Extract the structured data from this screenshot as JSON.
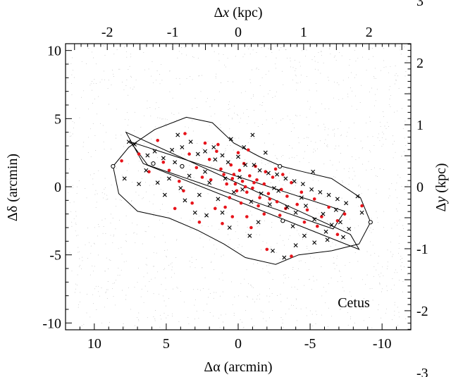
{
  "chart_data": {
    "type": "scatter",
    "bottom_axis": {
      "label_prefix": "Δα",
      "label_suffix": " (arcmin)",
      "range": [
        12,
        -12
      ],
      "ticks": [
        10,
        5,
        0,
        -5,
        -10
      ],
      "tick_labels": [
        "10",
        "5",
        "0",
        "-5",
        "-10"
      ]
    },
    "left_axis": {
      "label_prefix": "Δδ",
      "label_suffix": " (arcmin)",
      "range": [
        -10.5,
        10.5
      ],
      "ticks": [
        10,
        5,
        0,
        -5,
        -10
      ],
      "tick_labels": [
        "10",
        "5",
        "0",
        "-5",
        "-10"
      ]
    },
    "top_axis": {
      "label_prefix": "Δ",
      "label_var": "x",
      "label_suffix": " (kpc)",
      "ticks_arcmin": [
        9.1,
        4.55,
        0,
        -4.55,
        -9.1
      ],
      "tick_labels": [
        "-2",
        "-1",
        "0",
        "1",
        "2"
      ]
    },
    "right_axis": {
      "label_prefix": "Δ",
      "label_var": "y",
      "label_suffix": " (kpc)",
      "ticks_arcmin": [
        13.65,
        9.1,
        4.55,
        0,
        -4.55,
        -9.1,
        -13.65
      ],
      "tick_labels": [
        "3",
        "2",
        "1",
        "0",
        "-1",
        "-2",
        "-3"
      ]
    },
    "annotation": "Cetus",
    "colors": {
      "red": "#e8141b",
      "black": "#000000",
      "background_dots": "#bbbbbb"
    },
    "peanut_outline": [
      [
        8.7,
        1.5
      ],
      [
        7.6,
        2.9
      ],
      [
        5.8,
        4.2
      ],
      [
        3.6,
        5.1
      ],
      [
        1.8,
        4.7
      ],
      [
        0.3,
        3.2
      ],
      [
        -1.5,
        2.2
      ],
      [
        -3.0,
        1.5
      ],
      [
        -4.5,
        1.1
      ],
      [
        -6.5,
        0.6
      ],
      [
        -8.5,
        -0.8
      ],
      [
        -9.2,
        -2.6
      ],
      [
        -8.4,
        -4.2
      ],
      [
        -6.5,
        -4.7
      ],
      [
        -4.2,
        -5.0
      ],
      [
        -2.6,
        -5.7
      ],
      [
        -0.5,
        -5.2
      ],
      [
        1.0,
        -4.2
      ],
      [
        2.8,
        -3.2
      ],
      [
        4.8,
        -2.3
      ],
      [
        7.0,
        -1.8
      ],
      [
        8.3,
        -0.5
      ],
      [
        8.7,
        1.5
      ]
    ],
    "slit_outer": [
      [
        7.8,
        4.0
      ],
      [
        -7.8,
        -3.5
      ],
      [
        -8.4,
        -4.6
      ],
      [
        6.6,
        1.7
      ]
    ],
    "slit_inner": [
      [
        6.3,
        1.6
      ],
      [
        7.5,
        3.3
      ],
      [
        -7.4,
        -1.8
      ],
      [
        -6.6,
        -3.1
      ]
    ],
    "open_circles": [
      [
        8.7,
        1.5
      ],
      [
        -2.9,
        1.5
      ],
      [
        -3.1,
        -2.5
      ],
      [
        -9.2,
        -2.6
      ],
      [
        5.9,
        1.7
      ],
      [
        3.9,
        1.5
      ]
    ],
    "black_points": [
      [
        7.6,
        3.3
      ],
      [
        7.2,
        3.1
      ],
      [
        6.3,
        2.3
      ],
      [
        5.8,
        2.6
      ],
      [
        5.2,
        2.1
      ],
      [
        4.6,
        2.7
      ],
      [
        3.9,
        2.9
      ],
      [
        3.3,
        3.3
      ],
      [
        2.8,
        2.4
      ],
      [
        2.3,
        2.6
      ],
      [
        1.6,
        2.0
      ],
      [
        1.1,
        2.3
      ],
      [
        0.7,
        1.8
      ],
      [
        0.0,
        2.2
      ],
      [
        -0.5,
        1.6
      ],
      [
        -1.1,
        1.6
      ],
      [
        -1.5,
        1.2
      ],
      [
        -2.1,
        1.0
      ],
      [
        -2.7,
        0.9
      ],
      [
        -3.3,
        0.6
      ],
      [
        -3.9,
        0.4
      ],
      [
        -4.5,
        0.2
      ],
      [
        -5.1,
        -0.2
      ],
      [
        -5.7,
        -0.4
      ],
      [
        -6.3,
        -0.6
      ],
      [
        -6.9,
        -0.9
      ],
      [
        -7.5,
        -1.2
      ],
      [
        5.6,
        0.3
      ],
      [
        4.8,
        0.6
      ],
      [
        4.0,
        -0.1
      ],
      [
        3.4,
        0.8
      ],
      [
        2.7,
        -0.6
      ],
      [
        2.0,
        0.3
      ],
      [
        1.4,
        -0.9
      ],
      [
        0.9,
        0.6
      ],
      [
        0.3,
        -0.4
      ],
      [
        -0.3,
        -0.2
      ],
      [
        -0.9,
        -1.1
      ],
      [
        -1.6,
        -0.5
      ],
      [
        -2.2,
        -1.3
      ],
      [
        -2.8,
        -0.3
      ],
      [
        -3.4,
        -1.5
      ],
      [
        -4.0,
        -1.9
      ],
      [
        -4.7,
        -1.4
      ],
      [
        -5.3,
        -2.4
      ],
      [
        -5.9,
        -2.0
      ],
      [
        -6.5,
        -2.8
      ],
      [
        -7.1,
        -2.6
      ],
      [
        -7.7,
        -3.1
      ],
      [
        -4.6,
        -3.6
      ],
      [
        -5.3,
        -4.1
      ],
      [
        -6.2,
        -3.9
      ],
      [
        -4.0,
        -4.3
      ],
      [
        -3.2,
        -5.2
      ],
      [
        -2.4,
        -4.7
      ],
      [
        -0.8,
        -3.6
      ],
      [
        0.6,
        -3.0
      ],
      [
        2.2,
        -2.1
      ],
      [
        3.7,
        -1.0
      ],
      [
        6.9,
        0.2
      ],
      [
        7.9,
        0.6
      ],
      [
        -8.6,
        -1.9
      ],
      [
        -8.3,
        -0.7
      ],
      [
        -5.2,
        1.1
      ],
      [
        -1.9,
        2.5
      ],
      [
        4.2,
        3.8
      ],
      [
        2.3,
        1.1
      ],
      [
        -0.1,
        0.7
      ],
      [
        -2.5,
        -0.1
      ],
      [
        -4.4,
        -0.8
      ],
      [
        1.1,
        -1.9
      ],
      [
        -1.4,
        -2.6
      ],
      [
        -3.8,
        -2.9
      ],
      [
        6.4,
        1.2
      ],
      [
        5.1,
        -0.6
      ],
      [
        -6.8,
        -1.7
      ],
      [
        0.5,
        3.5
      ],
      [
        -1.0,
        3.8
      ],
      [
        3.0,
        -1.9
      ],
      [
        -6.1,
        -3.3
      ],
      [
        -7.3,
        -3.7
      ],
      [
        4.4,
        1.8
      ],
      [
        1.7,
        2.9
      ],
      [
        -0.4,
        2.9
      ]
    ],
    "red_points": [
      [
        8.1,
        1.9
      ],
      [
        6.9,
        2.4
      ],
      [
        5.6,
        3.4
      ],
      [
        4.8,
        1.2
      ],
      [
        3.7,
        3.9
      ],
      [
        2.9,
        1.4
      ],
      [
        2.3,
        3.2
      ],
      [
        1.9,
        0.5
      ],
      [
        1.5,
        2.6
      ],
      [
        1.2,
        1.3
      ],
      [
        0.8,
        0.2
      ],
      [
        0.5,
        1.6
      ],
      [
        0.3,
        0.9
      ],
      [
        0.1,
        -0.3
      ],
      [
        -0.1,
        1.2
      ],
      [
        -0.3,
        0.4
      ],
      [
        -0.6,
        -0.4
      ],
      [
        -0.8,
        0.8
      ],
      [
        -1.0,
        -0.1
      ],
      [
        -1.3,
        0.5
      ],
      [
        -1.5,
        -0.8
      ],
      [
        -1.8,
        0.2
      ],
      [
        -2.1,
        -0.5
      ],
      [
        -2.4,
        0.7
      ],
      [
        -2.7,
        -1.1
      ],
      [
        -3.0,
        -0.2
      ],
      [
        -3.4,
        -0.7
      ],
      [
        -3.7,
        0.3
      ],
      [
        -4.1,
        -1.3
      ],
      [
        -4.4,
        -0.4
      ],
      [
        -4.8,
        -1.7
      ],
      [
        -5.3,
        -0.9
      ],
      [
        -5.8,
        -2.2
      ],
      [
        -6.3,
        -1.5
      ],
      [
        -6.9,
        -2.5
      ],
      [
        -7.4,
        -2.0
      ],
      [
        -8.6,
        -1.4
      ],
      [
        -6.9,
        -3.5
      ],
      [
        -2.0,
        -4.6
      ],
      [
        -3.7,
        -5.1
      ],
      [
        1.6,
        -1.6
      ],
      [
        3.2,
        -1.2
      ],
      [
        4.4,
        -1.6
      ],
      [
        2.7,
        -2.6
      ],
      [
        1.1,
        -2.7
      ],
      [
        0.4,
        -2.2
      ],
      [
        -0.6,
        -2.2
      ],
      [
        -0.9,
        -3.0
      ],
      [
        -1.8,
        -2.0
      ],
      [
        -2.9,
        -2.1
      ],
      [
        0.2,
        0.2
      ],
      [
        0.6,
        -0.8
      ],
      [
        1.0,
        0.9
      ],
      [
        -0.4,
        1.7
      ],
      [
        -1.2,
        1.5
      ],
      [
        -1.9,
        1.1
      ],
      [
        -2.6,
        1.3
      ],
      [
        -3.1,
        0.9
      ],
      [
        2.0,
        2.0
      ],
      [
        3.4,
        2.4
      ],
      [
        4.1,
        0.4
      ],
      [
        5.2,
        1.8
      ],
      [
        6.2,
        1.1
      ],
      [
        2.5,
        0.7
      ],
      [
        3.8,
        -0.3
      ],
      [
        -0.2,
        -1.2
      ],
      [
        -1.4,
        -1.4
      ],
      [
        -2.2,
        -0.9
      ],
      [
        -3.3,
        -1.6
      ],
      [
        -4.6,
        -2.6
      ],
      [
        -5.5,
        -2.9
      ],
      [
        0.0,
        2.5
      ],
      [
        -0.7,
        2.7
      ],
      [
        1.4,
        3.1
      ],
      [
        0.9,
        -1.5
      ],
      [
        -0.5,
        0.0
      ],
      [
        0.4,
        0.6
      ],
      [
        -1.1,
        0.3
      ]
    ]
  }
}
